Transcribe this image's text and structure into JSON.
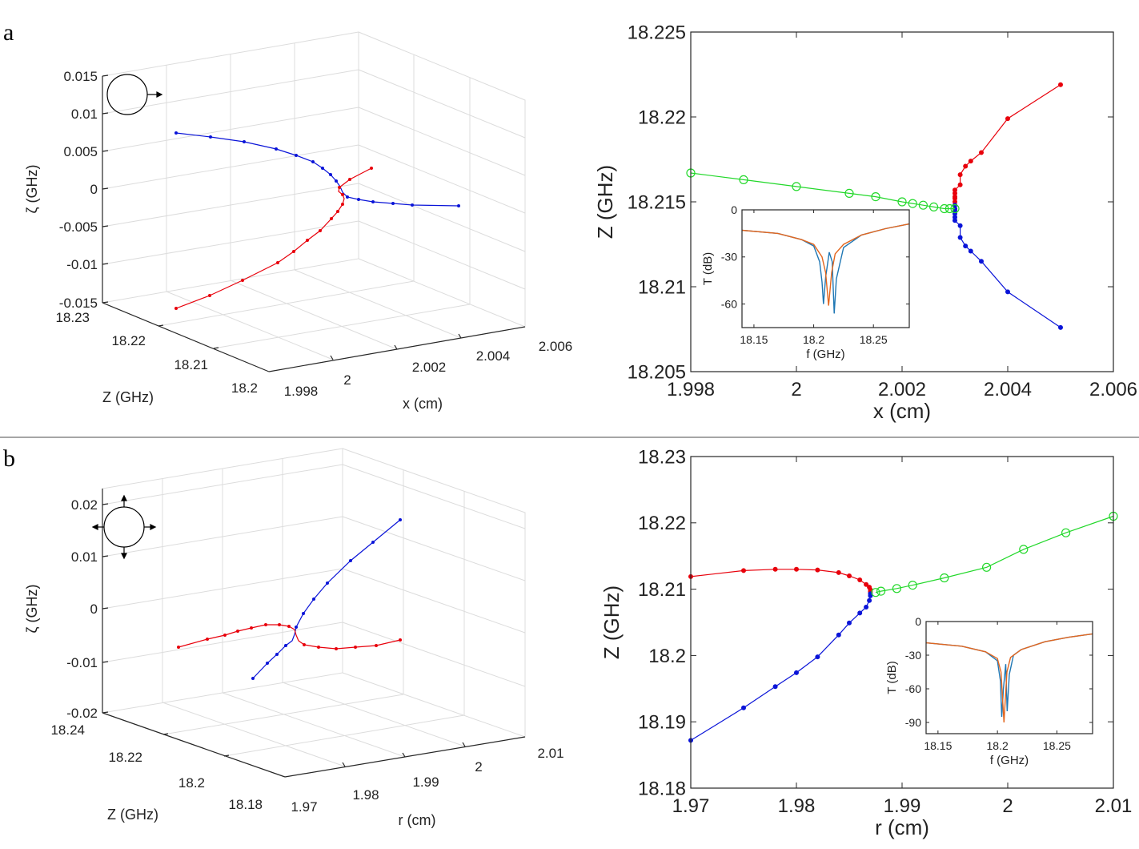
{
  "panels": [
    {
      "label": "a",
      "threeD": {
        "xlabel": "x (cm)",
        "ylabel": "Z (GHz)",
        "zlabel": "ζ (GHz)",
        "xticks": [
          "1.998",
          "2",
          "2.002",
          "2.004",
          "2.006"
        ],
        "yticks": [
          "18.2",
          "18.21",
          "18.22",
          "18.23"
        ],
        "zticks": [
          "-0.015",
          "-0.01",
          "-0.005",
          "0",
          "0.005",
          "0.01",
          "0.015"
        ]
      },
      "main": {
        "xlabel": "x (cm)",
        "ylabel": "Z (GHz)",
        "xticks": [
          "1.998",
          "2",
          "2.002",
          "2.004",
          "2.006"
        ],
        "yticks": [
          "18.205",
          "18.21",
          "18.215",
          "18.22",
          "18.225"
        ]
      },
      "inset": {
        "xlabel": "f (GHz)",
        "ylabel": "T (dB)",
        "xticks": [
          "18.15",
          "18.2",
          "18.25"
        ],
        "yticks": [
          "0",
          "-30",
          "-60"
        ]
      }
    },
    {
      "label": "b",
      "threeD": {
        "xlabel": "r (cm)",
        "ylabel": "Z (GHz)",
        "zlabel": "ζ (GHz)",
        "xticks": [
          "1.97",
          "1.98",
          "1.99",
          "2",
          "2.01"
        ],
        "yticks": [
          "18.18",
          "18.2",
          "18.22",
          "18.24"
        ],
        "zticks": [
          "-0.02",
          "-0.01",
          "0",
          "0.01",
          "0.02"
        ]
      },
      "main": {
        "xlabel": "r (cm)",
        "ylabel": "Z (GHz)",
        "xticks": [
          "1.97",
          "1.98",
          "1.99",
          "2",
          "2.01"
        ],
        "yticks": [
          "18.18",
          "18.19",
          "18.2",
          "18.21",
          "18.22",
          "18.23"
        ]
      },
      "inset": {
        "xlabel": "f (GHz)",
        "ylabel": "T (dB)",
        "xticks": [
          "18.15",
          "18.2",
          "18.25"
        ],
        "yticks": [
          "0",
          "-30",
          "-60",
          "-90"
        ]
      }
    }
  ],
  "colors": {
    "red": "#e8000b",
    "blue": "#0a14d8",
    "green": "#22d82a",
    "inset_blue": "#1f77b4",
    "inset_orange": "#e3661e"
  },
  "chart_data": [
    {
      "type": "line",
      "panel": "a-main",
      "xlim": [
        1.998,
        2.006
      ],
      "ylim": [
        18.205,
        18.225
      ],
      "series": [
        {
          "color": "red",
          "marker": "dot",
          "x": [
            2.003,
            2.003,
            2.003,
            2.003,
            2.003,
            2.003,
            2.0031,
            2.0031,
            2.0032,
            2.0033,
            2.0035,
            2.004,
            2.005
          ],
          "y": [
            18.2148,
            18.215,
            18.2152,
            18.2153,
            18.2155,
            18.2157,
            18.216,
            18.2166,
            18.2171,
            18.2174,
            18.2179,
            18.2199,
            18.2219
          ]
        },
        {
          "color": "blue",
          "marker": "dot",
          "x": [
            2.003,
            2.003,
            2.003,
            2.003,
            2.003,
            2.003,
            2.0031,
            2.0031,
            2.0032,
            2.0033,
            2.0035,
            2.004,
            2.005
          ],
          "y": [
            18.2148,
            18.2146,
            18.2145,
            18.2143,
            18.2141,
            18.2139,
            18.2136,
            18.2129,
            18.2124,
            18.2121,
            18.2115,
            18.2097,
            18.2076
          ]
        },
        {
          "color": "green",
          "marker": "open-circle",
          "x": [
            1.998,
            1.999,
            2.0,
            2.001,
            2.0015,
            2.002,
            2.0022,
            2.0024,
            2.0026,
            2.0028,
            2.0029,
            2.003
          ],
          "y": [
            18.2167,
            18.2163,
            18.2159,
            18.2155,
            18.2153,
            18.215,
            18.2149,
            18.2148,
            18.2147,
            18.2146,
            18.2146,
            18.2146
          ]
        }
      ]
    },
    {
      "type": "line",
      "panel": "a-inset",
      "xlim": [
        18.14,
        18.28
      ],
      "ylim": [
        -75,
        0
      ],
      "series": [
        {
          "color": "inset_blue",
          "x": [
            18.14,
            18.17,
            18.19,
            18.2,
            18.205,
            18.207,
            18.2082,
            18.21,
            18.213,
            18.2155,
            18.2172,
            18.219,
            18.225,
            18.24,
            18.26,
            18.28
          ],
          "y": [
            -13,
            -15,
            -19,
            -23,
            -33,
            -46,
            -60,
            -43,
            -27,
            -33,
            -66,
            -44,
            -24,
            -16,
            -12,
            -9
          ]
        },
        {
          "color": "inset_orange",
          "x": [
            18.14,
            18.17,
            18.19,
            18.2,
            18.207,
            18.21,
            18.2125,
            18.215,
            18.218,
            18.225,
            18.24,
            18.26,
            18.28
          ],
          "y": [
            -13,
            -15,
            -19,
            -22,
            -30,
            -40,
            -61,
            -40,
            -28,
            -22,
            -16,
            -12,
            -9
          ]
        }
      ]
    },
    {
      "type": "line",
      "panel": "b-main",
      "xlim": [
        1.97,
        2.01
      ],
      "ylim": [
        18.18,
        18.23
      ],
      "series": [
        {
          "color": "red",
          "marker": "dot",
          "x": [
            1.97,
            1.975,
            1.978,
            1.98,
            1.982,
            1.984,
            1.985,
            1.986,
            1.9866,
            1.9869,
            1.987,
            1.987
          ],
          "y": [
            18.2119,
            18.2128,
            18.213,
            18.213,
            18.2129,
            18.2125,
            18.212,
            18.2114,
            18.2107,
            18.2103,
            18.2099,
            18.2096
          ]
        },
        {
          "color": "blue",
          "marker": "dot",
          "x": [
            1.987,
            1.987,
            1.9869,
            1.9866,
            1.986,
            1.985,
            1.984,
            1.982,
            1.98,
            1.978,
            1.975,
            1.97
          ],
          "y": [
            18.2093,
            18.209,
            18.2083,
            18.2073,
            18.2064,
            18.2049,
            18.2031,
            18.1998,
            18.1974,
            18.1953,
            18.1921,
            18.1872
          ]
        },
        {
          "color": "green",
          "marker": "open-circle",
          "x": [
            1.9875,
            1.988,
            1.9895,
            1.991,
            1.994,
            1.998,
            2.0015,
            2.0055,
            2.01
          ],
          "y": [
            18.2095,
            18.2097,
            18.2101,
            18.2106,
            18.2117,
            18.2133,
            18.216,
            18.2185,
            18.221
          ]
        }
      ]
    },
    {
      "type": "line",
      "panel": "b-inset",
      "xlim": [
        18.14,
        18.28
      ],
      "ylim": [
        -100,
        0
      ],
      "series": [
        {
          "color": "inset_blue",
          "x": [
            18.14,
            18.17,
            18.19,
            18.2,
            18.2025,
            18.2036,
            18.205,
            18.207,
            18.2082,
            18.21,
            18.2135,
            18.22,
            18.24,
            18.26,
            18.28
          ],
          "y": [
            -19,
            -22,
            -27,
            -35,
            -53,
            -85,
            -60,
            -38,
            -80,
            -47,
            -30,
            -25,
            -18,
            -14,
            -11
          ]
        },
        {
          "color": "inset_orange",
          "x": [
            18.14,
            18.17,
            18.19,
            18.2,
            18.203,
            18.2055,
            18.208,
            18.211,
            18.22,
            18.24,
            18.26,
            18.28
          ],
          "y": [
            -19,
            -22,
            -27,
            -33,
            -45,
            -90,
            -45,
            -32,
            -25,
            -18,
            -14,
            -11
          ]
        }
      ]
    }
  ]
}
